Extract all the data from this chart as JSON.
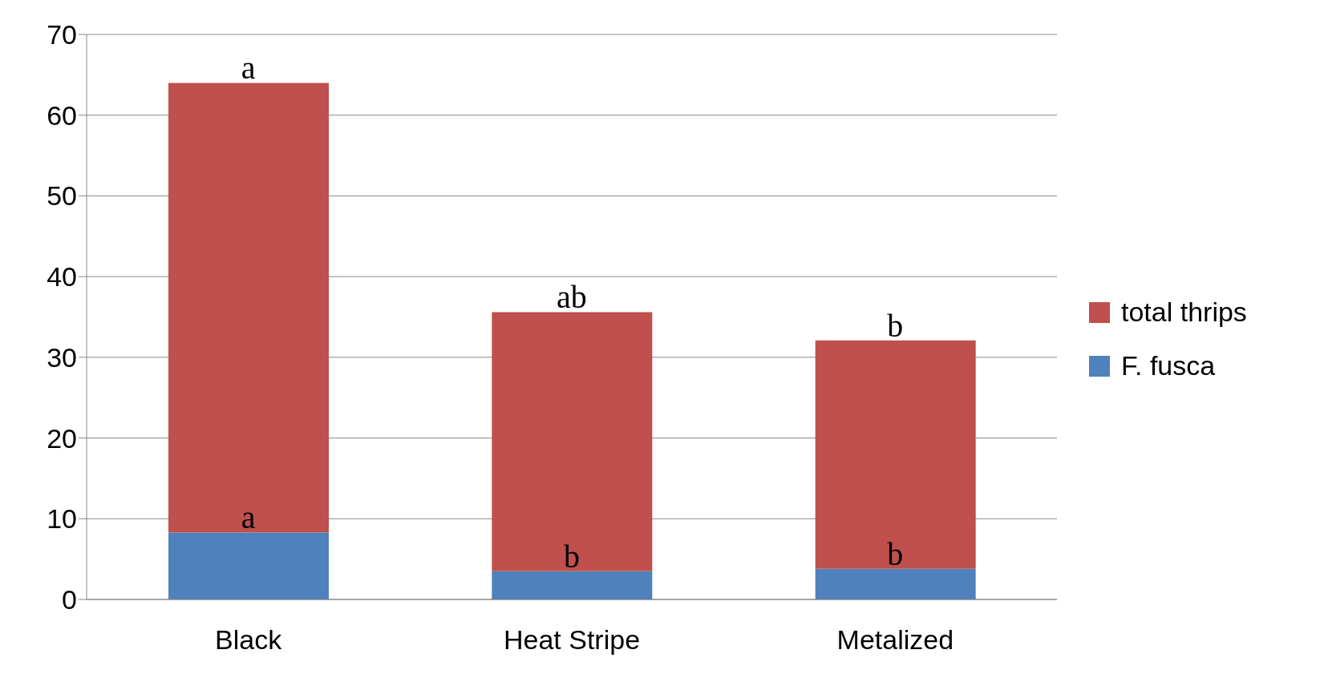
{
  "chart_data": {
    "type": "bar",
    "stacked": true,
    "categories": [
      "Black",
      "Heat Stripe",
      "Metalized"
    ],
    "series": [
      {
        "name": "F. fusca",
        "color": "#4f81bd",
        "values": [
          8.3,
          3.5,
          3.8
        ]
      },
      {
        "name": "total thrips",
        "color": "#c0504d",
        "values": [
          55.7,
          32.1,
          28.3
        ]
      }
    ],
    "ylim": [
      0,
      70
    ],
    "yticks": [
      0,
      10,
      20,
      30,
      40,
      50,
      60,
      70
    ],
    "grid": "y",
    "legend": "right",
    "annotations": [
      {
        "text": "a",
        "x": "Black",
        "y": 64
      },
      {
        "text": "a",
        "x": "Black",
        "y": 8.3
      },
      {
        "text": "ab",
        "x": "Heat Stripe",
        "y": 35.6
      },
      {
        "text": "b",
        "x": "Heat Stripe",
        "y": 3.5
      },
      {
        "text": "b",
        "x": "Metalized",
        "y": 32.1
      },
      {
        "text": "b",
        "x": "Metalized",
        "y": 3.8
      }
    ]
  }
}
